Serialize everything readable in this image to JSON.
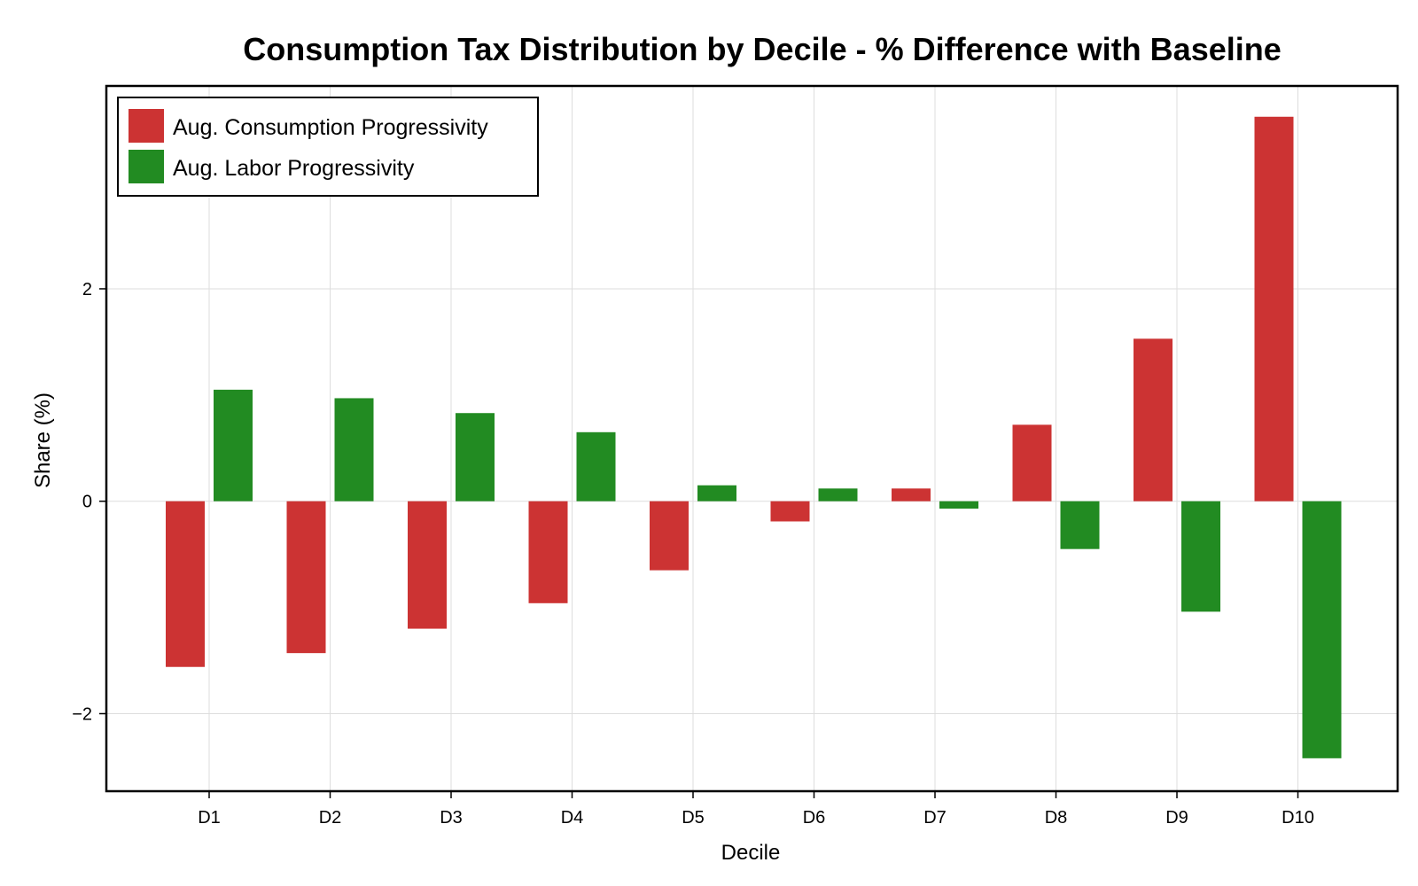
{
  "chart_data": {
    "type": "bar",
    "title": "Consumption Tax Distribution by Decile - % Difference with Baseline",
    "xlabel": "Decile",
    "ylabel": "Share (%)",
    "categories": [
      "D1",
      "D2",
      "D3",
      "D4",
      "D5",
      "D6",
      "D7",
      "D8",
      "D9",
      "D10"
    ],
    "series": [
      {
        "name": "Aug. Consumption Progressivity",
        "color": "#cc3333",
        "values": [
          -1.56,
          -1.43,
          -1.2,
          -0.96,
          -0.65,
          -0.19,
          0.12,
          0.72,
          1.53,
          3.62
        ]
      },
      {
        "name": "Aug. Labor Progressivity",
        "color": "#228b22",
        "values": [
          1.05,
          0.97,
          0.83,
          0.65,
          0.15,
          0.12,
          -0.07,
          -0.45,
          -1.04,
          -2.42
        ]
      }
    ],
    "ylim": [
      -2.73,
      3.91
    ],
    "yticks": [
      -2,
      0,
      2
    ],
    "ytick_labels": [
      "−2",
      "0",
      "2"
    ],
    "grid": true,
    "legend_position": "top-left"
  }
}
